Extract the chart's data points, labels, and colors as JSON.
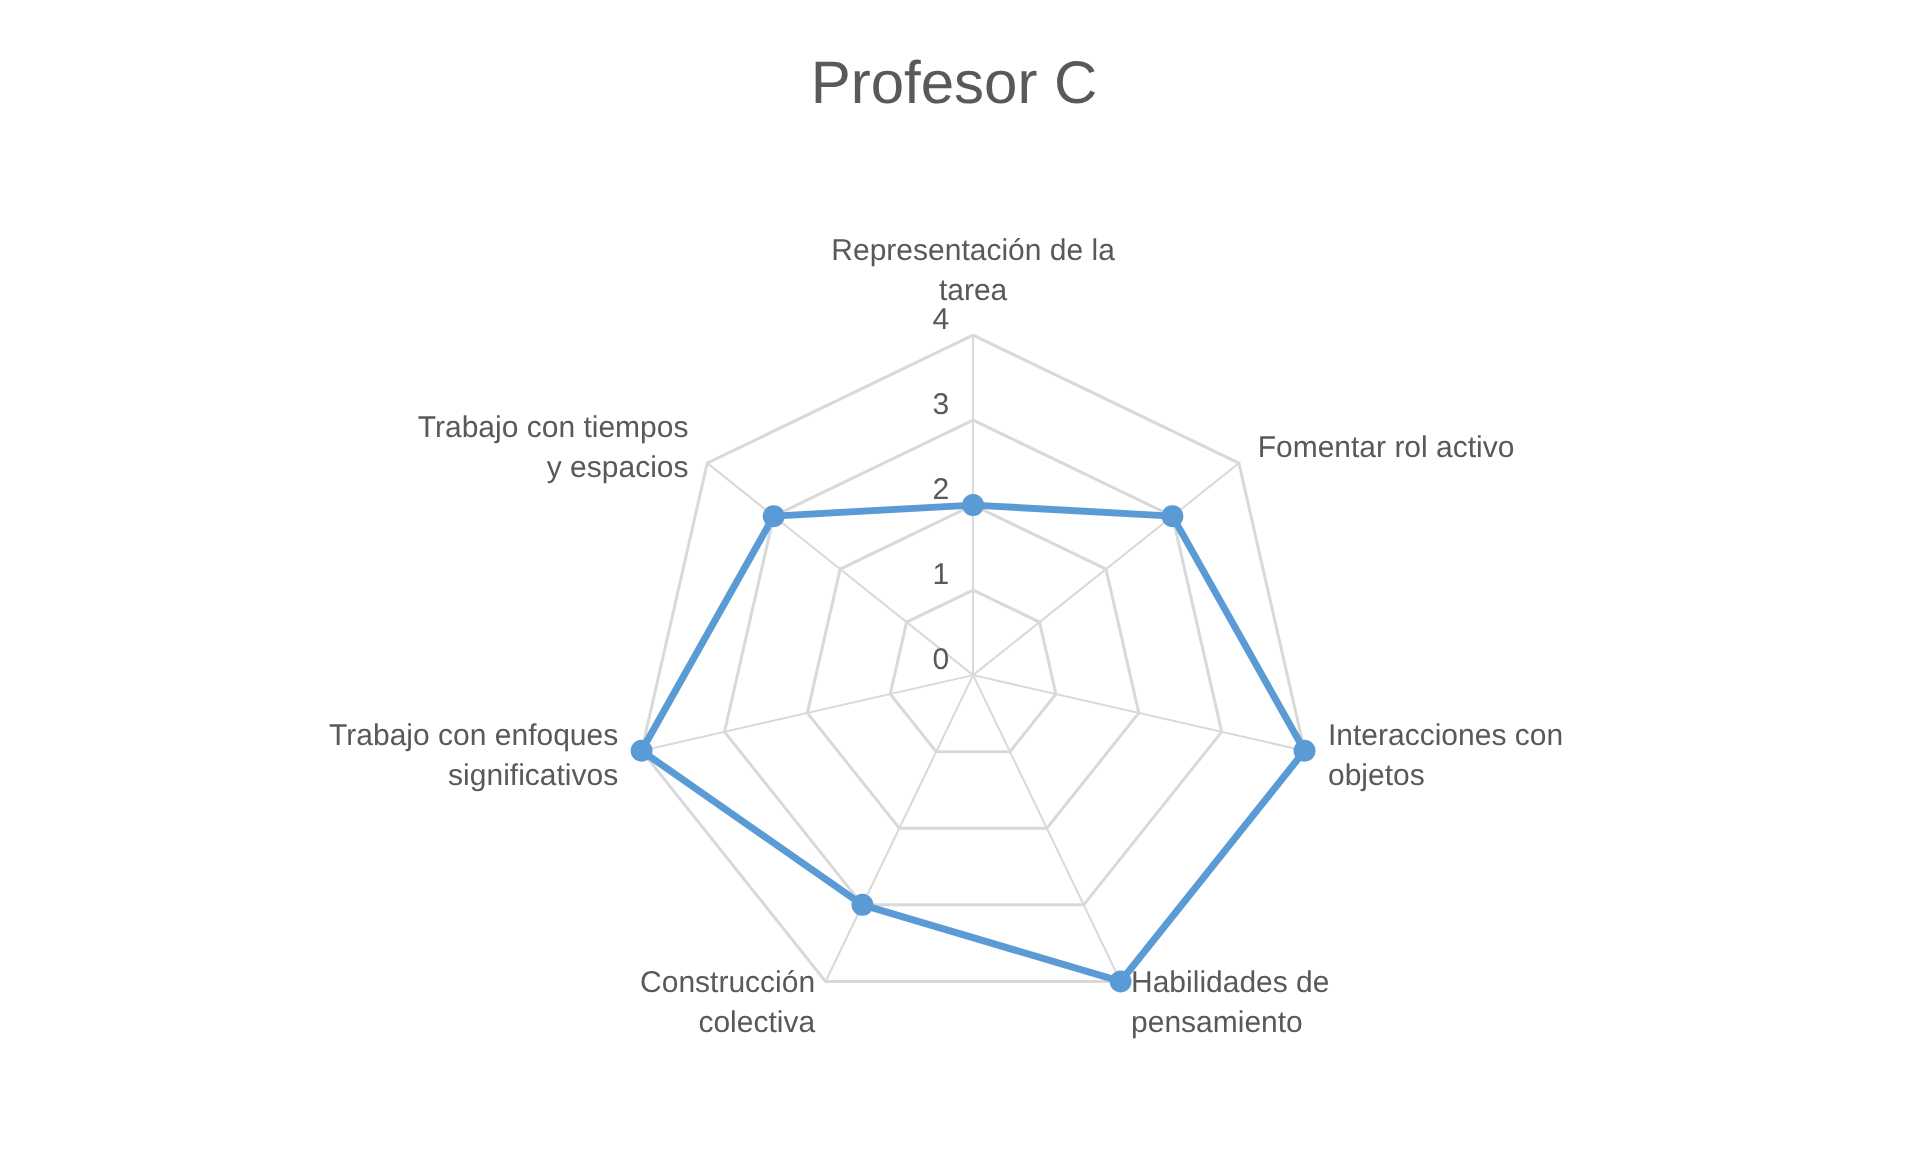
{
  "chart_data": {
    "type": "radar",
    "title": "Profesor C",
    "categories": [
      "Representación de la tarea",
      "Fomentar rol activo",
      "Interacciones con objetos",
      "Habilidades de pensamiento",
      "Construcción colectiva",
      "Trabajo con enfoques significativos",
      "Trabajo con tiempos y espacios"
    ],
    "series": [
      {
        "color": "#5b9bd5",
        "values": [
          2,
          3,
          4,
          4,
          3,
          4,
          3
        ]
      }
    ],
    "ylim": [
      0,
      4
    ],
    "yticks": [
      0,
      1,
      2,
      3,
      4
    ],
    "grid": true,
    "marker": "circle",
    "line_style": "solid"
  }
}
